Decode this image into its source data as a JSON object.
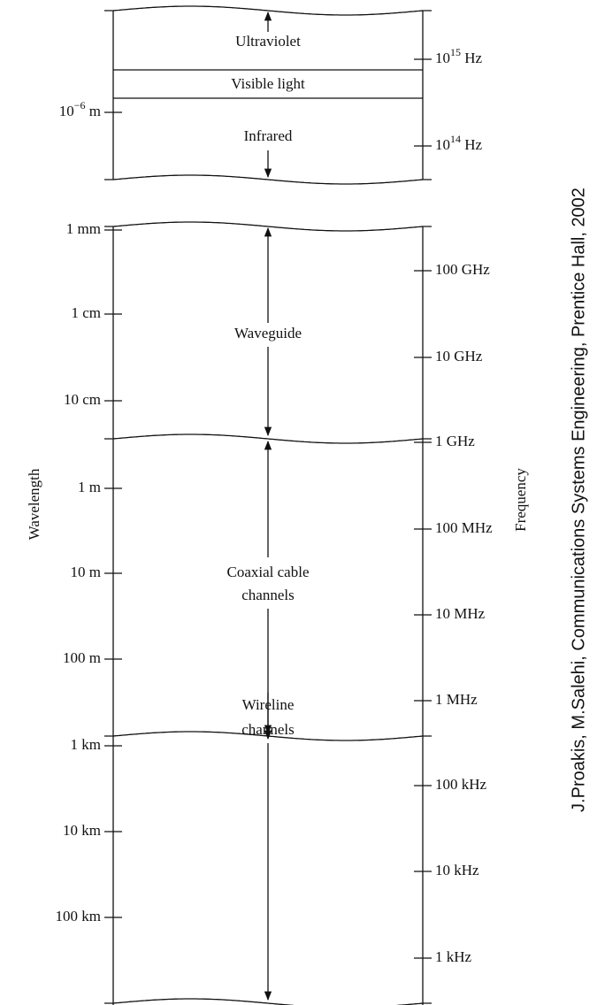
{
  "credit": "J.Proakis, M.Salehi, Communications Systems Engineering, Prentice Hall, 2002",
  "axes": {
    "left": "Wavelength",
    "right": "Frequency"
  },
  "bands": [
    {
      "lines": [
        "Ultraviolet"
      ]
    },
    {
      "lines": [
        "Visible light"
      ]
    },
    {
      "lines": [
        "Infrared"
      ]
    },
    {
      "lines": [
        "Waveguide"
      ]
    },
    {
      "lines": [
        "Coaxial cable",
        "channels"
      ]
    },
    {
      "lines": [
        "Wireline",
        "channels"
      ]
    }
  ],
  "wavelength_ticks": [
    {
      "base": "10",
      "exponent": "−6",
      "unit": "m"
    },
    "1 mm",
    "1 cm",
    "10 cm",
    "1 m",
    "10 m",
    "100 m",
    "1 km",
    "10 km",
    "100 km"
  ],
  "frequency_ticks": [
    {
      "base": "10",
      "exponent": "15",
      "unit": "Hz"
    },
    {
      "base": "10",
      "exponent": "14",
      "unit": "Hz"
    },
    "100 GHz",
    "10 GHz",
    "1 GHz",
    "100 MHz",
    "10 MHz",
    "1 MHz",
    "100 kHz",
    "10 kHz",
    "1 kHz"
  ]
}
